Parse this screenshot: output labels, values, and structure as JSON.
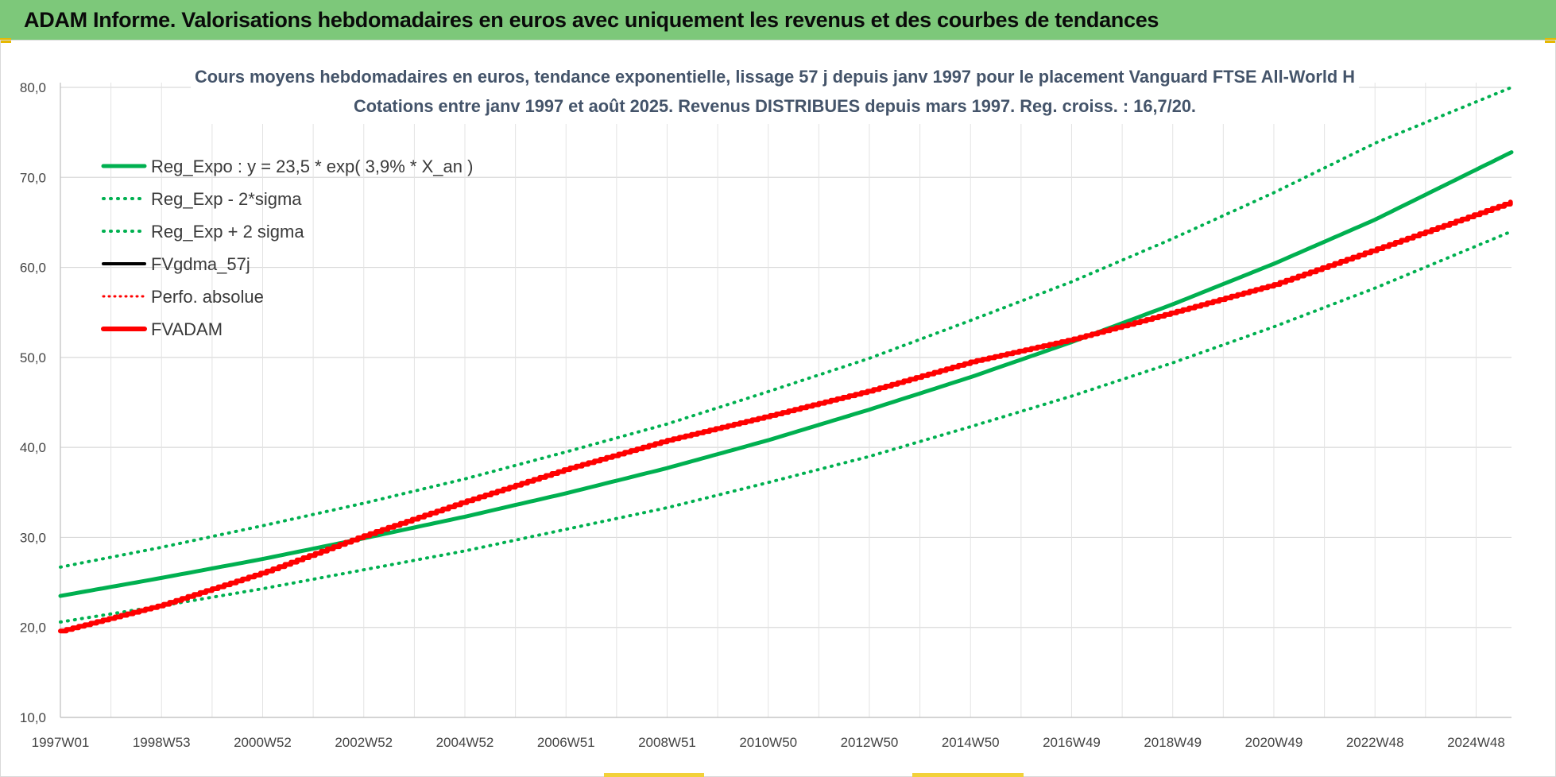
{
  "header": {
    "title": "ADAM Informe. Valorisations hebdomadaires en euros avec uniquement les revenus et des courbes de tendances"
  },
  "chart_data": {
    "type": "line",
    "title": "Cours moyens hebdomadaires en euros, tendance exponentielle, lissage 57 j depuis janv 1997 pour le placement Vanguard FTSE All-World H",
    "subtitle": "Cotations entre janv 1997 et août 2025.  Revenus DISTRIBUES depuis mars 1997. Reg. croiss. : 16,7/20.",
    "xlabel": "",
    "ylabel": "",
    "ylim": [
      10,
      80
    ],
    "xlim": [
      0,
      28.7
    ],
    "grid": true,
    "legend_position": "top-left",
    "y_ticks": [
      "10,0",
      "20,0",
      "30,0",
      "40,0",
      "50,0",
      "60,0",
      "70,0",
      "80,0"
    ],
    "x_ticks": [
      {
        "label": "1997W01",
        "x": 0
      },
      {
        "label": "1998W53",
        "x": 2
      },
      {
        "label": "2000W52",
        "x": 4
      },
      {
        "label": "2002W52",
        "x": 6
      },
      {
        "label": "2004W52",
        "x": 8
      },
      {
        "label": "2006W51",
        "x": 10
      },
      {
        "label": "2008W51",
        "x": 12
      },
      {
        "label": "2010W50",
        "x": 14
      },
      {
        "label": "2012W50",
        "x": 16
      },
      {
        "label": "2014W50",
        "x": 18
      },
      {
        "label": "2016W49",
        "x": 20
      },
      {
        "label": "2018W49",
        "x": 22
      },
      {
        "label": "2020W49",
        "x": 24
      },
      {
        "label": "2022W48",
        "x": 26
      },
      {
        "label": "2024W48",
        "x": 28
      }
    ],
    "colors": {
      "trend": "#00b050",
      "fv": "#ff0000",
      "fvgdma": "#000000"
    },
    "series": [
      {
        "name": "Reg_Expo : y = 23,5 * exp( 3,9% *  X_an )",
        "style": "solid-green",
        "x": [
          0,
          2,
          4,
          6,
          8,
          10,
          12,
          14,
          16,
          18,
          20,
          22,
          24,
          26,
          28.7
        ],
        "y": [
          23.5,
          25.5,
          27.6,
          29.9,
          32.3,
          34.9,
          37.7,
          40.8,
          44.2,
          47.8,
          51.7,
          55.9,
          60.4,
          65.3,
          72.8
        ]
      },
      {
        "name": "Reg_Exp - 2*sigma",
        "style": "dotted-green",
        "x": [
          0,
          2,
          4,
          6,
          8,
          10,
          12,
          14,
          16,
          18,
          20,
          22,
          24,
          26,
          28.7
        ],
        "y": [
          20.6,
          22.4,
          24.3,
          26.4,
          28.5,
          30.9,
          33.3,
          36.1,
          39.0,
          42.3,
          45.7,
          49.4,
          53.4,
          57.7,
          64.0
        ]
      },
      {
        "name": "Reg_Exp + 2 sigma",
        "style": "dotted-green",
        "x": [
          0,
          2,
          4,
          6,
          8,
          10,
          12,
          14,
          16,
          18,
          20,
          22,
          24,
          26,
          28.7
        ],
        "y": [
          26.7,
          28.9,
          31.3,
          33.8,
          36.5,
          39.5,
          42.6,
          46.2,
          49.9,
          54.1,
          58.4,
          63.2,
          68.3,
          73.8,
          80.0
        ]
      },
      {
        "name": "FVgdma_57j",
        "style": "solid-black",
        "x": [],
        "y": []
      },
      {
        "name": "Perfo. absolue",
        "style": "dotted-red",
        "x": [],
        "y": []
      },
      {
        "name": "FVADAM",
        "style": "solid-red",
        "x": [
          0,
          2,
          4,
          6,
          8,
          10,
          12,
          14,
          16,
          18,
          20,
          22,
          24,
          26,
          28.7
        ],
        "y": [
          19.6,
          22.5,
          26.1,
          30.2,
          34.0,
          37.6,
          40.8,
          43.5,
          46.3,
          49.5,
          52.0,
          55.0,
          58.1,
          62.0,
          67.3
        ]
      }
    ]
  }
}
